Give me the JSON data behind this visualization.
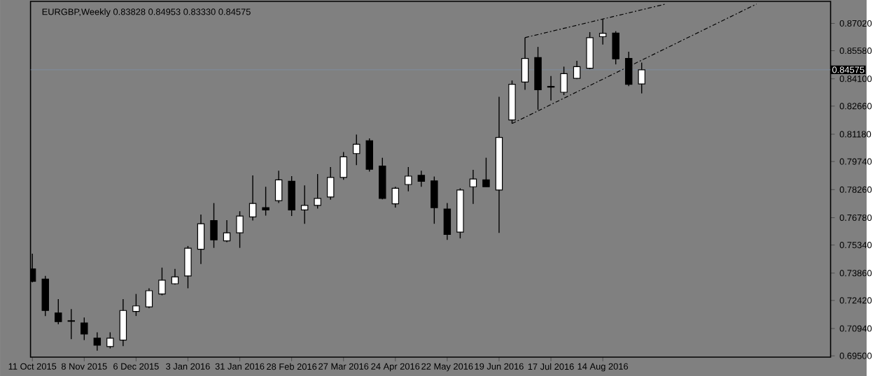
{
  "chart_data": {
    "type": "candlestick",
    "title": "EURGBP,Weekly  0.83828 0.84953 0.83330 0.84575",
    "x": [
      "2015-10-11",
      "2015-10-18",
      "2015-10-25",
      "2015-11-01",
      "2015-11-08",
      "2015-11-15",
      "2015-11-22",
      "2015-11-29",
      "2015-12-06",
      "2015-12-13",
      "2015-12-20",
      "2015-12-27",
      "2016-01-03",
      "2016-01-10",
      "2016-01-17",
      "2016-01-24",
      "2016-01-31",
      "2016-02-07",
      "2016-02-14",
      "2016-02-21",
      "2016-02-28",
      "2016-03-06",
      "2016-03-13",
      "2016-03-20",
      "2016-03-27",
      "2016-04-03",
      "2016-04-10",
      "2016-04-17",
      "2016-04-24",
      "2016-05-01",
      "2016-05-08",
      "2016-05-15",
      "2016-05-22",
      "2016-05-29",
      "2016-06-05",
      "2016-06-12",
      "2016-06-19",
      "2016-06-26",
      "2016-07-03",
      "2016-07-10",
      "2016-07-17",
      "2016-07-24",
      "2016-07-31",
      "2016-08-07",
      "2016-08-14",
      "2016-08-21",
      "2016-08-28",
      "2016-09-04"
    ],
    "ohlc": [
      [
        0.7408,
        0.7488,
        0.7337,
        0.7342
      ],
      [
        0.7354,
        0.7371,
        0.716,
        0.7189
      ],
      [
        0.7176,
        0.7249,
        0.7116,
        0.713
      ],
      [
        0.7135,
        0.7196,
        0.7038,
        0.7132
      ],
      [
        0.7123,
        0.7152,
        0.7033,
        0.7065
      ],
      [
        0.7043,
        0.7074,
        0.6977,
        0.7006
      ],
      [
        0.6999,
        0.7074,
        0.6989,
        0.7043
      ],
      [
        0.7033,
        0.7249,
        0.7001,
        0.7189
      ],
      [
        0.7184,
        0.7276,
        0.716,
        0.7213
      ],
      [
        0.7208,
        0.7306,
        0.7201,
        0.7293
      ],
      [
        0.7276,
        0.7415,
        0.7269,
        0.7349
      ],
      [
        0.733,
        0.7408,
        0.7325,
        0.7366
      ],
      [
        0.7371,
        0.7529,
        0.7306,
        0.7517
      ],
      [
        0.7512,
        0.7695,
        0.7434,
        0.7646
      ],
      [
        0.7663,
        0.7755,
        0.7519,
        0.7561
      ],
      [
        0.7556,
        0.7665,
        0.7549,
        0.7598
      ],
      [
        0.7598,
        0.7712,
        0.7519,
        0.7687
      ],
      [
        0.7682,
        0.7901,
        0.7663,
        0.7753
      ],
      [
        0.7731,
        0.7841,
        0.7689,
        0.7719
      ],
      [
        0.7768,
        0.7926,
        0.7755,
        0.7877
      ],
      [
        0.787,
        0.7897,
        0.7687,
        0.7719
      ],
      [
        0.7719,
        0.7848,
        0.7646,
        0.7743
      ],
      [
        0.7743,
        0.7908,
        0.7726,
        0.778
      ],
      [
        0.7787,
        0.7945,
        0.7773,
        0.789
      ],
      [
        0.789,
        0.8024,
        0.7878,
        0.7999
      ],
      [
        0.8016,
        0.8116,
        0.7955,
        0.8065
      ],
      [
        0.8084,
        0.8096,
        0.7921,
        0.7933
      ],
      [
        0.795,
        0.7994,
        0.7775,
        0.778
      ],
      [
        0.7751,
        0.7841,
        0.7731,
        0.7833
      ],
      [
        0.7853,
        0.7945,
        0.7817,
        0.7897
      ],
      [
        0.7901,
        0.7926,
        0.7841,
        0.787
      ],
      [
        0.7872,
        0.7895,
        0.7646,
        0.7731
      ],
      [
        0.7724,
        0.7755,
        0.7561,
        0.759
      ],
      [
        0.7602,
        0.7833,
        0.7569,
        0.7824
      ],
      [
        0.7841,
        0.793,
        0.7751,
        0.7882
      ],
      [
        0.7877,
        0.7994,
        0.7841,
        0.7841
      ],
      [
        0.7824,
        0.8315,
        0.7598,
        0.8101
      ],
      [
        0.8193,
        0.8401,
        0.8174,
        0.8381
      ],
      [
        0.8393,
        0.8627,
        0.8352,
        0.8517
      ],
      [
        0.8522,
        0.8578,
        0.8247,
        0.8352
      ],
      [
        0.837,
        0.8425,
        0.8296,
        0.8366
      ],
      [
        0.8339,
        0.8474,
        0.8324,
        0.8437
      ],
      [
        0.8412,
        0.8505,
        0.8408,
        0.8474
      ],
      [
        0.8466,
        0.8656,
        0.8461,
        0.8627
      ],
      [
        0.8632,
        0.8724,
        0.859,
        0.865
      ],
      [
        0.8651,
        0.8661,
        0.8486,
        0.8515
      ],
      [
        0.8517,
        0.8553,
        0.8371,
        0.8381
      ],
      [
        0.83828,
        0.84953,
        0.8333,
        0.84575
      ]
    ],
    "series": [
      {
        "type": "line",
        "x": [
          "2016-07-03",
          "2016-09-17"
        ],
        "values": [
          0.8627,
          0.8804
        ],
        "color": "#000000",
        "line_style": "dashed"
      },
      {
        "type": "line",
        "x": [
          "2016-06-26",
          "2016-11-05"
        ],
        "values": [
          0.8174,
          0.8804
        ],
        "color": "#000000",
        "line_style": "dashed"
      }
    ],
    "ref_lines": [
      {
        "axis": "y",
        "value": 0.84575,
        "label": "0.84575",
        "color": "#7f8fa8"
      }
    ],
    "xlim": [
      "2015-10-10",
      "2016-12-15"
    ],
    "ylim": [
      0.6943,
      0.8818
    ],
    "xticks": [
      {
        "value": "2015-10-11",
        "label": "11 Oct 2015"
      },
      {
        "value": "2015-11-08",
        "label": "8 Nov 2015"
      },
      {
        "value": "2015-12-06",
        "label": "6 Dec 2015"
      },
      {
        "value": "2016-01-03",
        "label": "3 Jan 2016"
      },
      {
        "value": "2016-01-31",
        "label": "31 Jan 2016"
      },
      {
        "value": "2016-02-28",
        "label": "28 Feb 2016"
      },
      {
        "value": "2016-03-27",
        "label": "27 Mar 2016"
      },
      {
        "value": "2016-04-24",
        "label": "24 Apr 2016"
      },
      {
        "value": "2016-05-22",
        "label": "22 May 2016"
      },
      {
        "value": "2016-06-19",
        "label": "19 Jun 2016"
      },
      {
        "value": "2016-07-17",
        "label": "17 Jul 2016"
      },
      {
        "value": "2016-08-14",
        "label": "14 Aug 2016"
      }
    ],
    "yticks": [
      {
        "value": 0.695,
        "label": "0.69500"
      },
      {
        "value": 0.7094,
        "label": "0.70940"
      },
      {
        "value": 0.7242,
        "label": "0.72420"
      },
      {
        "value": 0.7386,
        "label": "0.73860"
      },
      {
        "value": 0.7534,
        "label": "0.75340"
      },
      {
        "value": 0.7678,
        "label": "0.76780"
      },
      {
        "value": 0.7826,
        "label": "0.78260"
      },
      {
        "value": 0.7974,
        "label": "0.79740"
      },
      {
        "value": 0.8118,
        "label": "0.81180"
      },
      {
        "value": 0.8266,
        "label": "0.82660"
      },
      {
        "value": 0.841,
        "label": "0.84100"
      },
      {
        "value": 0.8558,
        "label": "0.85580"
      },
      {
        "value": 0.8702,
        "label": "0.87020"
      }
    ]
  }
}
